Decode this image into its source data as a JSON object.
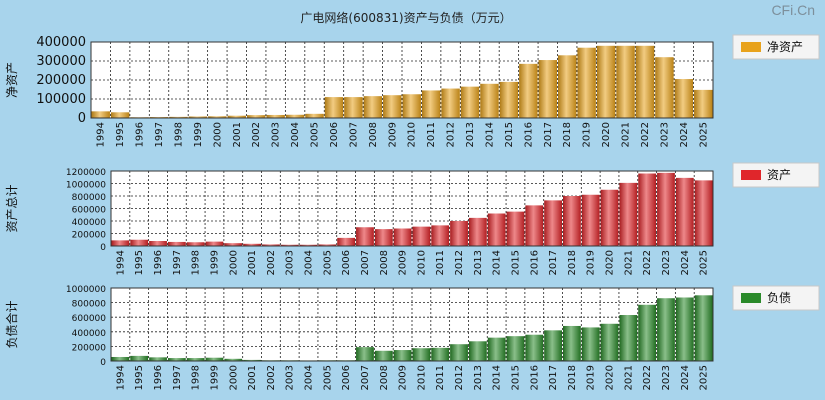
{
  "title": "广电网络(600831)资产与负债（万元）",
  "watermark": "CFi.Cn",
  "colors": {
    "background": "#a8d4ec",
    "plot": "#ffffff",
    "net_assets": "#e8a21c",
    "assets": "#e0262b",
    "liabilities": "#2a8a2a"
  },
  "chart_data": [
    {
      "type": "bar",
      "ylabel": "净资产",
      "legend": "净资产",
      "legend_position": "right",
      "grid": true,
      "ylim": [
        0,
        400000
      ],
      "yticks": [
        "0",
        "100000",
        "200000",
        "300000",
        "400000"
      ],
      "categories": [
        "1994",
        "1995",
        "1996",
        "1997",
        "1998",
        "1999",
        "2000",
        "2001",
        "2002",
        "2003",
        "2004",
        "2005",
        "2006",
        "2007",
        "2008",
        "2009",
        "2010",
        "2011",
        "2012",
        "2013",
        "2014",
        "2015",
        "2016",
        "2017",
        "2018",
        "2019",
        "2020",
        "2021",
        "2022",
        "2023",
        "2024",
        "2025"
      ],
      "series": [
        {
          "name": "净资产",
          "values": [
            35000,
            30000,
            4000,
            5000,
            6000,
            8000,
            9000,
            12000,
            15000,
            16000,
            17000,
            22000,
            110000,
            110000,
            115000,
            120000,
            125000,
            145000,
            155000,
            165000,
            180000,
            190000,
            285000,
            305000,
            330000,
            370000,
            380000,
            380000,
            380000,
            320000,
            205000,
            148000
          ]
        }
      ]
    },
    {
      "type": "bar",
      "ylabel": "资产总计",
      "legend": "资产",
      "legend_position": "right",
      "grid": true,
      "ylim": [
        0,
        1200000
      ],
      "yticks": [
        "0",
        "200000",
        "400000",
        "600000",
        "800000",
        "1000000",
        "1200000"
      ],
      "categories": [
        "1994",
        "1995",
        "1996",
        "1997",
        "1998",
        "1999",
        "2000",
        "2001",
        "2002",
        "2003",
        "2004",
        "2005",
        "2006",
        "2007",
        "2008",
        "2009",
        "2010",
        "2011",
        "2012",
        "2013",
        "2014",
        "2015",
        "2016",
        "2017",
        "2018",
        "2019",
        "2020",
        "2021",
        "2022",
        "2023",
        "2024",
        "2025"
      ],
      "series": [
        {
          "name": "资产",
          "values": [
            90000,
            100000,
            80000,
            65000,
            60000,
            70000,
            45000,
            35000,
            25000,
            20000,
            20000,
            25000,
            130000,
            300000,
            270000,
            280000,
            310000,
            330000,
            400000,
            450000,
            520000,
            550000,
            650000,
            730000,
            800000,
            820000,
            900000,
            1010000,
            1160000,
            1170000,
            1090000,
            1050000
          ]
        }
      ]
    },
    {
      "type": "bar",
      "ylabel": "负债合计",
      "legend": "负债",
      "legend_position": "right",
      "grid": true,
      "ylim": [
        0,
        1000000
      ],
      "yticks": [
        "0",
        "200000",
        "400000",
        "600000",
        "800000",
        "1000000"
      ],
      "categories": [
        "1994",
        "1995",
        "1996",
        "1997",
        "1998",
        "1999",
        "2000",
        "2001",
        "2002",
        "2003",
        "2004",
        "2005",
        "2006",
        "2007",
        "2008",
        "2009",
        "2010",
        "2011",
        "2012",
        "2013",
        "2014",
        "2015",
        "2016",
        "2017",
        "2018",
        "2019",
        "2020",
        "2021",
        "2022",
        "2023",
        "2024",
        "2025"
      ],
      "series": [
        {
          "name": "负债",
          "values": [
            55000,
            70000,
            50000,
            40000,
            40000,
            45000,
            30000,
            15000,
            10000,
            10000,
            8000,
            10000,
            10000,
            190000,
            140000,
            150000,
            175000,
            180000,
            230000,
            270000,
            320000,
            340000,
            360000,
            420000,
            480000,
            460000,
            510000,
            630000,
            770000,
            860000,
            870000,
            900000
          ]
        }
      ]
    }
  ]
}
